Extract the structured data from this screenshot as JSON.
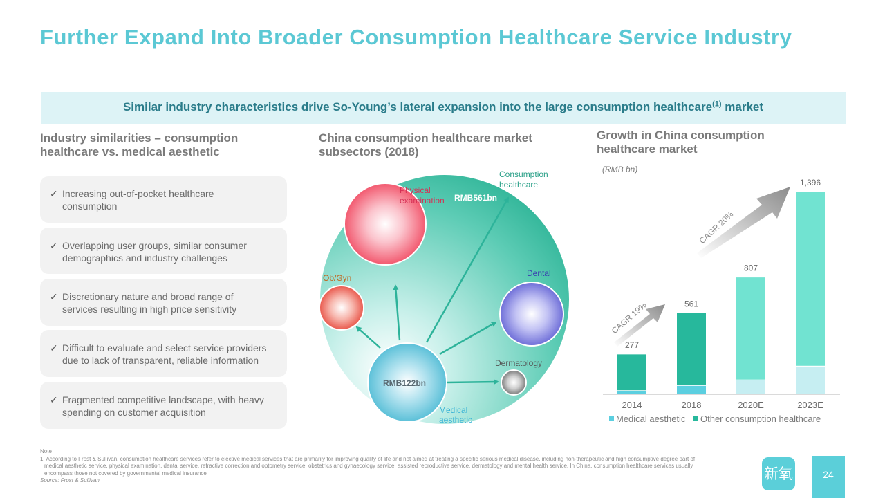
{
  "title": "Further Expand Into Broader Consumption Healthcare Service Industry",
  "banner": {
    "text": "Similar industry characteristics drive So-Young’s lateral expansion into the large consumption healthcare",
    "sup": "(1)",
    "tail": " market"
  },
  "left": {
    "heading_line1": "Industry similarities – consumption",
    "heading_line2": "healthcare vs. medical aesthetic",
    "check": "✓",
    "bullets": [
      {
        "line1": "Increasing out-of-pocket healthcare",
        "line2": "consumption"
      },
      {
        "line1": "Overlapping user groups, similar consumer",
        "line2": "demographics and industry challenges"
      },
      {
        "line1": "Discretionary nature and broad range of",
        "line2": "services resulting in high price sensitivity"
      },
      {
        "line1": "Difficult to evaluate and select service providers",
        "line2": "due to lack of transparent, reliable information"
      },
      {
        "line1": "Fragmented competitive landscape, with heavy",
        "line2": "spending on customer acquisition"
      }
    ]
  },
  "middle": {
    "heading_line1": "China consumption healthcare market",
    "heading_line2": "subsectors (2018)",
    "labels": {
      "consumption_l1": "Consumption",
      "consumption_l2": "healthcare",
      "physical_l1": "Physical",
      "physical_l2": "examination",
      "rmb561": "RMB561bn",
      "obgyn": "Ob/Gyn",
      "dental": "Dental",
      "dermatology": "Dermatology",
      "rmb122": "RMB122bn",
      "medical_l1": "Medical",
      "medical_l2": "aesthetic"
    },
    "colors": {
      "teal": "#2DB39A",
      "physical": "#F2586E",
      "obgyn": "#E9584C",
      "dental": "#6E6ED8",
      "dermatology": "#7a7a7a",
      "medical": "#5BC0D8"
    }
  },
  "right": {
    "heading_line1": "Growth in China consumption",
    "heading_line2": "healthcare market",
    "unit": "(RMB bn)",
    "cagr_1": "CAGR 19%",
    "cagr_2": "CAGR 20%",
    "legend_medical": "Medical aesthetic",
    "legend_other": "Other consumption healthcare"
  },
  "chart_data": {
    "type": "bar",
    "stacked": true,
    "categories": [
      "2014",
      "2018",
      "2020E",
      "2023E"
    ],
    "totals": [
      277,
      561,
      807,
      1396
    ],
    "series": [
      {
        "name": "Medical aesthetic",
        "values": [
          25,
          61,
          99,
          194
        ],
        "colors": [
          "#5BCFE0",
          "#5BCFE0",
          "#C6EEF2",
          "#C6EEF2"
        ]
      },
      {
        "name": "Other consumption healthcare",
        "values": [
          252,
          500,
          708,
          1202
        ],
        "colors": [
          "#27B89C",
          "#27B89C",
          "#71E3D1",
          "#71E3D1"
        ]
      }
    ],
    "legend_position": "bottom"
  },
  "note": {
    "label": "Note",
    "footnote": "1. According to Frost & Sullivan, consumption healthcare services refer to elective medical services that are primarily for improving quality of life and not aimed at treating a specific serious medical disease, including non-therapeutic and high consumptive degree part of medical aesthetic service, physical examination, dental service, refractive correction and optometry service, obstetrics and gynaecology service, assisted reproductive service, dermatology and mental health service. In China, consumption healthcare services usually encompass those not covered by governmental medical insurance",
    "source": "Source: Frost & Sullivan"
  },
  "logo_text": "新氧",
  "page_number": "24"
}
